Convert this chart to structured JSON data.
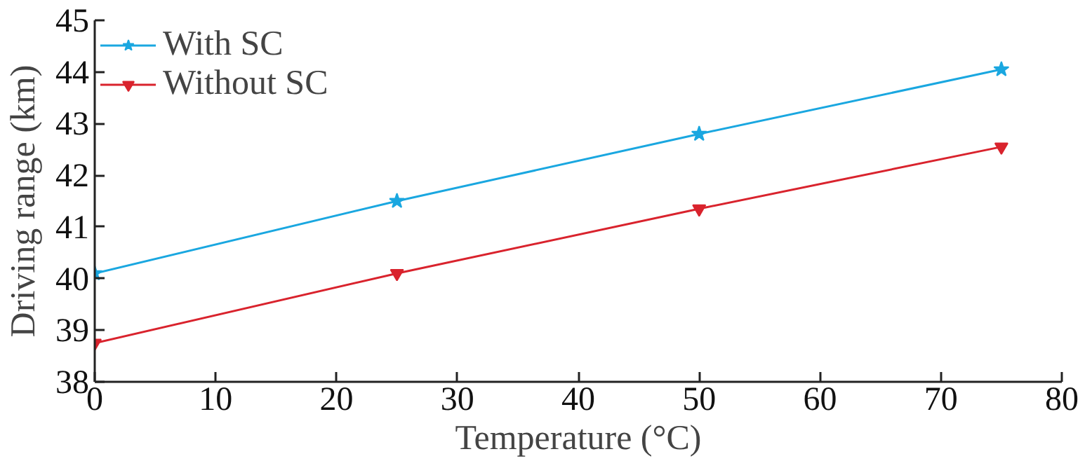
{
  "chart_data": {
    "type": "line",
    "xlabel": "Temperature (°C)",
    "ylabel": "Driving range (km)",
    "x": [
      0,
      25,
      50,
      75
    ],
    "series": [
      {
        "name": "With SC",
        "color": "#1aa7e0",
        "marker": "star",
        "values": [
          40.1,
          41.5,
          42.8,
          44.05
        ]
      },
      {
        "name": "Without SC",
        "color": "#d9232d",
        "marker": "triangle",
        "values": [
          38.75,
          40.1,
          41.35,
          42.55
        ]
      }
    ],
    "xlim": [
      0,
      80
    ],
    "xticks": [
      0,
      10,
      20,
      30,
      40,
      50,
      60,
      70,
      80
    ],
    "ylim": [
      38,
      45
    ],
    "yticks": [
      38,
      39,
      40,
      41,
      42,
      43,
      44,
      45
    ],
    "grid": false,
    "legend": "top left",
    "line_style": "solid"
  }
}
